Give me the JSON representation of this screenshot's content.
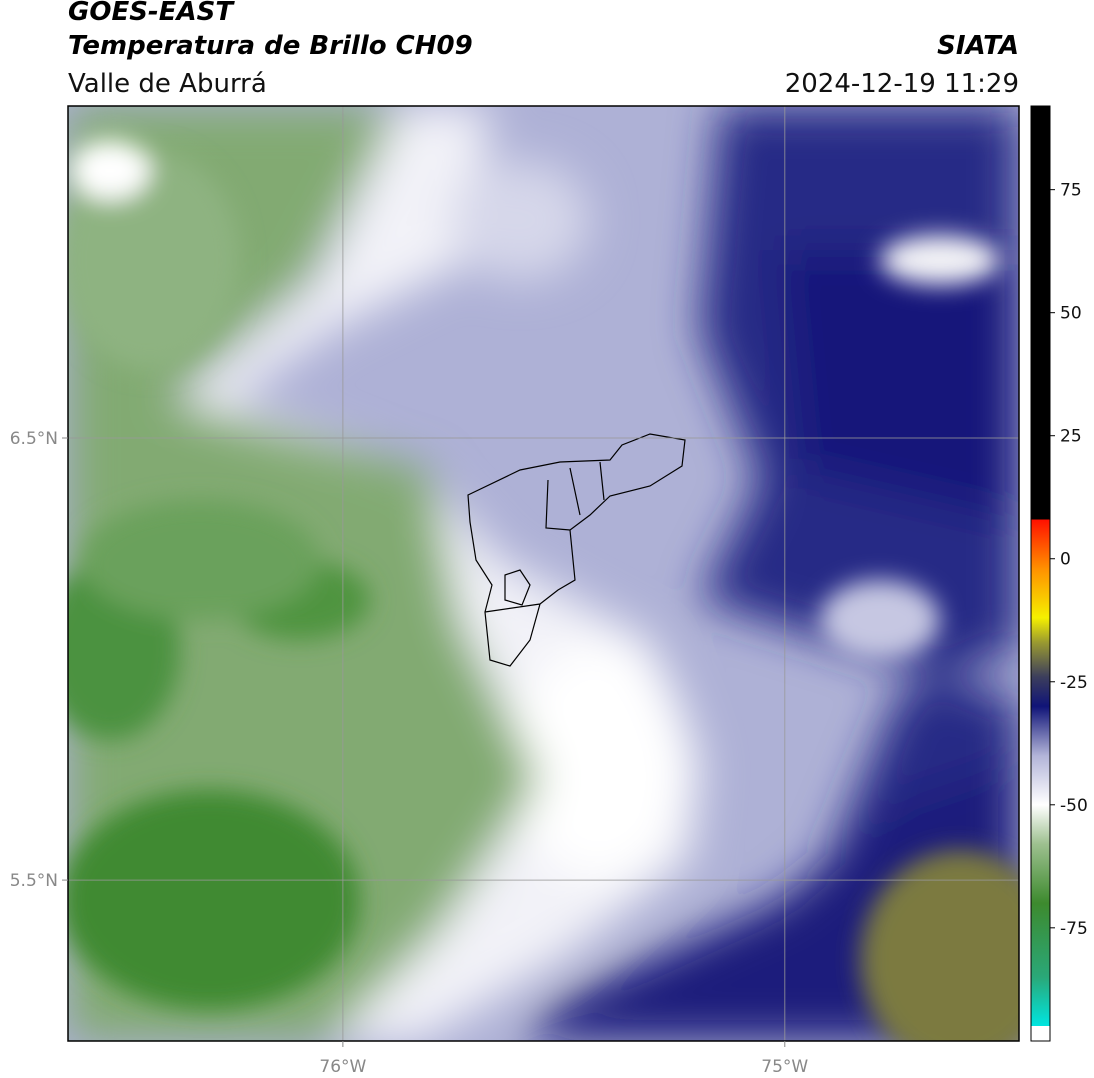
{
  "header": {
    "title": "GOES-EAST",
    "product": "Temperatura de Brillo CH09",
    "region": "Valle de Aburrá",
    "source": "SIATA",
    "datetime": "2024-12-19 11:29"
  },
  "map": {
    "xlim": [
      -76.622,
      -74.47
    ],
    "ylim": [
      5.136,
      7.251
    ],
    "xticks": [
      {
        "value": -76,
        "label": "76°W"
      },
      {
        "value": -75,
        "label": "75°W"
      }
    ],
    "yticks": [
      {
        "value": 6.5,
        "label": "6.5°N"
      },
      {
        "value": 5.5,
        "label": "5.5°N"
      }
    ],
    "grid": true
  },
  "colorbar": {
    "lim": [
      -98,
      92
    ],
    "ticks": [
      75,
      50,
      25,
      0,
      -25,
      -50,
      -75
    ],
    "colormap": [
      {
        "value": -98,
        "color": "#ffffff"
      },
      {
        "value": -95,
        "color": "#ffffff"
      },
      {
        "value": -95,
        "color": "#00e5e0"
      },
      {
        "value": -85,
        "color": "#2aa878"
      },
      {
        "value": -70,
        "color": "#3d8a2e"
      },
      {
        "value": -58,
        "color": "#9dc08f"
      },
      {
        "value": -50,
        "color": "#ffffff"
      },
      {
        "value": -40,
        "color": "#b2b4d8"
      },
      {
        "value": -30,
        "color": "#101478"
      },
      {
        "value": -24,
        "color": "#3c3e5c"
      },
      {
        "value": -17,
        "color": "#9a9a30"
      },
      {
        "value": -12,
        "color": "#f5f000"
      },
      {
        "value": -2,
        "color": "#ff9000"
      },
      {
        "value": 8,
        "color": "#ff1000"
      },
      {
        "value": 8,
        "color": "#000000"
      },
      {
        "value": 92,
        "color": "#000000"
      }
    ]
  }
}
